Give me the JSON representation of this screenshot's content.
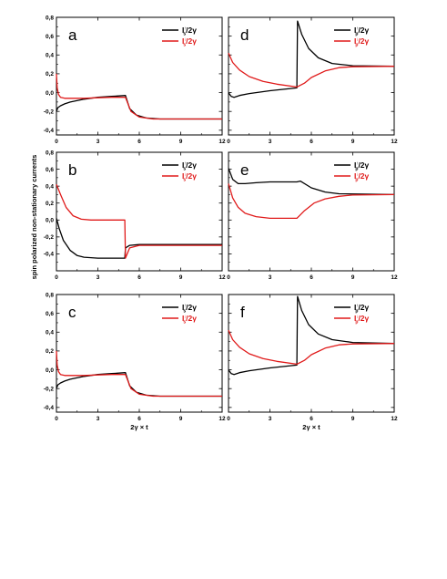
{
  "figure": {
    "ylabel": "spin polarized non-stationary currents",
    "xlabel": "2γ × t",
    "series_colors": {
      "up": "#000000",
      "down": "#e01a1a"
    }
  },
  "chart_data": [
    {
      "panel": "a",
      "type": "line",
      "xlim": [
        0,
        12
      ],
      "ylim": [
        -0.45,
        0.8
      ],
      "xticks": [
        "0",
        "3",
        "6",
        "9",
        "12"
      ],
      "yticks": [
        "0,8",
        "0,6",
        "0,4",
        "0,2",
        "0,0",
        "-0,2",
        "-0,4"
      ],
      "legend": {
        "position": "top-right",
        "entries": [
          {
            "main": "I",
            "sub": "s",
            "sup": "↑",
            "tail": "/2γ"
          },
          {
            "main": "I",
            "sub": "s",
            "sup": "↓",
            "tail": "/2γ"
          }
        ]
      },
      "series": [
        {
          "values": [
            [
              0,
              -0.2
            ],
            [
              0.1,
              -0.16
            ],
            [
              0.3,
              -0.14
            ],
            [
              0.6,
              -0.12
            ],
            [
              1,
              -0.1
            ],
            [
              2,
              -0.07
            ],
            [
              3,
              -0.05
            ],
            [
              4,
              -0.04
            ],
            [
              5,
              -0.03
            ],
            [
              5.3,
              -0.17
            ],
            [
              5.8,
              -0.24
            ],
            [
              6.5,
              -0.27
            ],
            [
              7.5,
              -0.28
            ],
            [
              12,
              -0.28
            ]
          ]
        },
        {
          "values": [
            [
              0,
              0.2
            ],
            [
              0.05,
              0.05
            ],
            [
              0.15,
              -0.02
            ],
            [
              0.3,
              -0.05
            ],
            [
              0.6,
              -0.06
            ],
            [
              1,
              -0.06
            ],
            [
              2,
              -0.06
            ],
            [
              3,
              -0.055
            ],
            [
              4,
              -0.05
            ],
            [
              5,
              -0.05
            ],
            [
              5.4,
              -0.2
            ],
            [
              6,
              -0.26
            ],
            [
              7,
              -0.28
            ],
            [
              12,
              -0.28
            ]
          ]
        }
      ]
    },
    {
      "panel": "d",
      "type": "line",
      "xlim": [
        0,
        12
      ],
      "ylim": [
        -0.45,
        0.8
      ],
      "xticks": [
        "0",
        "3",
        "6",
        "9",
        "12"
      ],
      "yticks": [],
      "legend": {
        "position": "top-right",
        "entries": [
          {
            "main": "I",
            "sub": "p",
            "sup": "↑",
            "tail": "/2γ"
          },
          {
            "main": "I",
            "sub": "p",
            "sup": "↓",
            "tail": "/2γ"
          }
        ]
      },
      "series": [
        {
          "values": [
            [
              0,
              0.0
            ],
            [
              0.2,
              -0.04
            ],
            [
              0.4,
              -0.05
            ],
            [
              0.8,
              -0.03
            ],
            [
              1.5,
              -0.01
            ],
            [
              3,
              0.02
            ],
            [
              4.95,
              0.05
            ],
            [
              5,
              0.76
            ],
            [
              5.3,
              0.62
            ],
            [
              5.8,
              0.47
            ],
            [
              6.5,
              0.37
            ],
            [
              7.5,
              0.31
            ],
            [
              9,
              0.285
            ],
            [
              12,
              0.28
            ]
          ]
        },
        {
          "values": [
            [
              0,
              0.42
            ],
            [
              0.3,
              0.32
            ],
            [
              0.8,
              0.24
            ],
            [
              1.5,
              0.17
            ],
            [
              2.5,
              0.12
            ],
            [
              3.5,
              0.09
            ],
            [
              4.95,
              0.06
            ],
            [
              5.5,
              0.1
            ],
            [
              6,
              0.16
            ],
            [
              7,
              0.23
            ],
            [
              8,
              0.265
            ],
            [
              9,
              0.275
            ],
            [
              12,
              0.28
            ]
          ]
        }
      ]
    },
    {
      "panel": "b",
      "type": "line",
      "xlim": [
        0,
        12
      ],
      "ylim": [
        -0.6,
        0.8
      ],
      "xticks": [
        "0",
        "3",
        "6",
        "9",
        "12"
      ],
      "yticks": [
        "0,8",
        "0,6",
        "0,4",
        "0,2",
        "0,0",
        "-0,2",
        "-0,4"
      ],
      "legend": {
        "position": "top-right",
        "entries": [
          {
            "main": "I",
            "sub": "s",
            "sup": "↑",
            "tail": "/2γ"
          },
          {
            "main": "I",
            "sub": "s",
            "sup": "↓",
            "tail": "/2γ"
          }
        ]
      },
      "series": [
        {
          "values": [
            [
              0,
              0.02
            ],
            [
              0.2,
              -0.1
            ],
            [
              0.5,
              -0.24
            ],
            [
              1,
              -0.36
            ],
            [
              1.5,
              -0.42
            ],
            [
              2,
              -0.44
            ],
            [
              3,
              -0.45
            ],
            [
              4.95,
              -0.45
            ],
            [
              5,
              -0.33
            ],
            [
              5.3,
              -0.3
            ],
            [
              6,
              -0.29
            ],
            [
              12,
              -0.29
            ]
          ]
        },
        {
          "values": [
            [
              0,
              0.42
            ],
            [
              0.3,
              0.3
            ],
            [
              0.7,
              0.15
            ],
            [
              1.2,
              0.05
            ],
            [
              1.8,
              0.01
            ],
            [
              2.5,
              0.0
            ],
            [
              4.95,
              0.0
            ],
            [
              5,
              -0.45
            ],
            [
              5.3,
              -0.33
            ],
            [
              6,
              -0.3
            ],
            [
              12,
              -0.3
            ]
          ]
        }
      ]
    },
    {
      "panel": "e",
      "type": "line",
      "xlim": [
        0,
        12
      ],
      "ylim": [
        -0.6,
        0.8
      ],
      "xticks": [
        "0",
        "3",
        "6",
        "9",
        "12"
      ],
      "yticks": [],
      "legend": {
        "position": "top-right",
        "entries": [
          {
            "main": "I",
            "sub": "p",
            "sup": "↑",
            "tail": "/2γ"
          },
          {
            "main": "I",
            "sub": "p",
            "sup": "↓",
            "tail": "/2γ"
          }
        ]
      },
      "series": [
        {
          "values": [
            [
              0,
              0.61
            ],
            [
              0.3,
              0.48
            ],
            [
              0.7,
              0.43
            ],
            [
              1.2,
              0.43
            ],
            [
              2,
              0.44
            ],
            [
              3,
              0.45
            ],
            [
              4.95,
              0.45
            ],
            [
              5.2,
              0.46
            ],
            [
              6,
              0.38
            ],
            [
              7,
              0.33
            ],
            [
              8,
              0.31
            ],
            [
              12,
              0.3
            ]
          ]
        },
        {
          "values": [
            [
              0,
              0.43
            ],
            [
              0.3,
              0.26
            ],
            [
              0.7,
              0.15
            ],
            [
              1.2,
              0.08
            ],
            [
              2,
              0.04
            ],
            [
              3,
              0.02
            ],
            [
              4.95,
              0.02
            ],
            [
              5.5,
              0.11
            ],
            [
              6.2,
              0.2
            ],
            [
              7,
              0.25
            ],
            [
              8,
              0.28
            ],
            [
              9,
              0.295
            ],
            [
              12,
              0.3
            ]
          ]
        }
      ]
    },
    {
      "panel": "c",
      "type": "line",
      "xlim": [
        0,
        12
      ],
      "ylim": [
        -0.45,
        0.8
      ],
      "xticks": [
        "0",
        "3",
        "6",
        "9",
        "12"
      ],
      "yticks": [
        "0,8",
        "0,6",
        "0,4",
        "0,2",
        "0,0",
        "-0,2",
        "-0,4"
      ],
      "legend": {
        "position": "top-right",
        "entries": [
          {
            "main": "I",
            "sub": "s",
            "sup": "↑",
            "tail": "/2γ"
          },
          {
            "main": "I",
            "sub": "s",
            "sup": "↓",
            "tail": "/2γ"
          }
        ]
      },
      "series": [
        {
          "values": [
            [
              0,
              -0.2
            ],
            [
              0.1,
              -0.16
            ],
            [
              0.3,
              -0.14
            ],
            [
              0.6,
              -0.12
            ],
            [
              1,
              -0.1
            ],
            [
              2,
              -0.07
            ],
            [
              3,
              -0.05
            ],
            [
              4,
              -0.04
            ],
            [
              5,
              -0.03
            ],
            [
              5.3,
              -0.17
            ],
            [
              5.8,
              -0.24
            ],
            [
              6.5,
              -0.27
            ],
            [
              7.5,
              -0.28
            ],
            [
              12,
              -0.28
            ]
          ]
        },
        {
          "values": [
            [
              0,
              0.2
            ],
            [
              0.05,
              0.05
            ],
            [
              0.15,
              -0.02
            ],
            [
              0.3,
              -0.05
            ],
            [
              0.6,
              -0.06
            ],
            [
              1,
              -0.06
            ],
            [
              2,
              -0.06
            ],
            [
              3,
              -0.055
            ],
            [
              4,
              -0.05
            ],
            [
              5,
              -0.05
            ],
            [
              5.4,
              -0.2
            ],
            [
              6,
              -0.26
            ],
            [
              7,
              -0.28
            ],
            [
              12,
              -0.28
            ]
          ]
        }
      ]
    },
    {
      "panel": "f",
      "type": "line",
      "xlim": [
        0,
        12
      ],
      "ylim": [
        -0.45,
        0.8
      ],
      "xticks": [
        "0",
        "3",
        "6",
        "9",
        "12"
      ],
      "yticks": [],
      "legend": {
        "position": "top-right",
        "entries": [
          {
            "main": "I",
            "sub": "p",
            "sup": "↑",
            "tail": "/2γ"
          },
          {
            "main": "I",
            "sub": "p",
            "sup": "↓",
            "tail": "/2γ"
          }
        ]
      },
      "series": [
        {
          "values": [
            [
              0,
              0.0
            ],
            [
              0.2,
              -0.04
            ],
            [
              0.4,
              -0.05
            ],
            [
              0.8,
              -0.03
            ],
            [
              1.5,
              -0.01
            ],
            [
              3,
              0.02
            ],
            [
              4.95,
              0.05
            ],
            [
              5,
              0.78
            ],
            [
              5.3,
              0.63
            ],
            [
              5.8,
              0.48
            ],
            [
              6.5,
              0.38
            ],
            [
              7.5,
              0.32
            ],
            [
              9,
              0.29
            ],
            [
              12,
              0.28
            ]
          ]
        },
        {
          "values": [
            [
              0,
              0.42
            ],
            [
              0.3,
              0.32
            ],
            [
              0.8,
              0.24
            ],
            [
              1.5,
              0.17
            ],
            [
              2.5,
              0.12
            ],
            [
              3.5,
              0.09
            ],
            [
              4.95,
              0.06
            ],
            [
              5.5,
              0.1
            ],
            [
              6,
              0.16
            ],
            [
              7,
              0.23
            ],
            [
              8,
              0.265
            ],
            [
              9,
              0.275
            ],
            [
              12,
              0.28
            ]
          ]
        }
      ]
    }
  ]
}
